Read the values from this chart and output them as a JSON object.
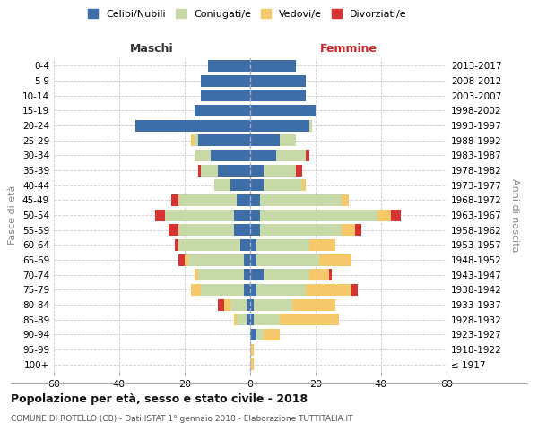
{
  "age_groups": [
    "100+",
    "95-99",
    "90-94",
    "85-89",
    "80-84",
    "75-79",
    "70-74",
    "65-69",
    "60-64",
    "55-59",
    "50-54",
    "45-49",
    "40-44",
    "35-39",
    "30-34",
    "25-29",
    "20-24",
    "15-19",
    "10-14",
    "5-9",
    "0-4"
  ],
  "birth_years": [
    "≤ 1917",
    "1918-1922",
    "1923-1927",
    "1928-1932",
    "1933-1937",
    "1938-1942",
    "1943-1947",
    "1948-1952",
    "1953-1957",
    "1958-1962",
    "1963-1967",
    "1968-1972",
    "1973-1977",
    "1978-1982",
    "1983-1987",
    "1988-1992",
    "1993-1997",
    "1998-2002",
    "2003-2007",
    "2008-2012",
    "2013-2017"
  ],
  "colors": {
    "celibe": "#3d6ea8",
    "coniugato": "#c8d9a8",
    "vedovo": "#f5c96a",
    "divorziato": "#d63333"
  },
  "maschi": {
    "celibe": [
      0,
      0,
      0,
      1,
      1,
      2,
      2,
      2,
      3,
      5,
      5,
      4,
      6,
      10,
      12,
      16,
      35,
      17,
      15,
      15,
      13
    ],
    "coniugato": [
      0,
      0,
      0,
      3,
      5,
      13,
      14,
      17,
      19,
      17,
      21,
      18,
      5,
      5,
      5,
      1,
      0,
      0,
      0,
      0,
      0
    ],
    "vedovo": [
      0,
      0,
      0,
      1,
      2,
      3,
      1,
      1,
      0,
      0,
      0,
      0,
      0,
      0,
      0,
      1,
      0,
      0,
      0,
      0,
      0
    ],
    "divorziato": [
      0,
      0,
      0,
      0,
      2,
      0,
      0,
      2,
      1,
      3,
      3,
      2,
      0,
      1,
      0,
      0,
      0,
      0,
      0,
      0,
      0
    ]
  },
  "femmine": {
    "nubile": [
      0,
      0,
      2,
      1,
      1,
      2,
      4,
      2,
      2,
      3,
      3,
      3,
      4,
      4,
      8,
      9,
      18,
      20,
      17,
      17,
      14
    ],
    "coniugata": [
      0,
      0,
      2,
      8,
      12,
      15,
      14,
      19,
      16,
      25,
      36,
      25,
      12,
      10,
      9,
      5,
      1,
      0,
      0,
      0,
      0
    ],
    "vedova": [
      1,
      1,
      5,
      18,
      13,
      14,
      6,
      10,
      8,
      4,
      4,
      2,
      1,
      0,
      0,
      0,
      0,
      0,
      0,
      0,
      0
    ],
    "divorziata": [
      0,
      0,
      0,
      0,
      0,
      2,
      1,
      0,
      0,
      2,
      3,
      0,
      0,
      2,
      1,
      0,
      0,
      0,
      0,
      0,
      0
    ]
  },
  "title_main": "Popolazione per età, sesso e stato civile - 2018",
  "title_sub": "COMUNE DI ROTELLO (CB) - Dati ISTAT 1° gennaio 2018 - Elaborazione TUTTITALIA.IT",
  "xlabel_left": "Maschi",
  "xlabel_right": "Femmine",
  "ylabel_left": "Fasce di età",
  "ylabel_right": "Anni di nascita",
  "xlim": 60,
  "legend_labels": [
    "Celibi/Nubili",
    "Coniugati/e",
    "Vedovi/e",
    "Divorziati/e"
  ]
}
